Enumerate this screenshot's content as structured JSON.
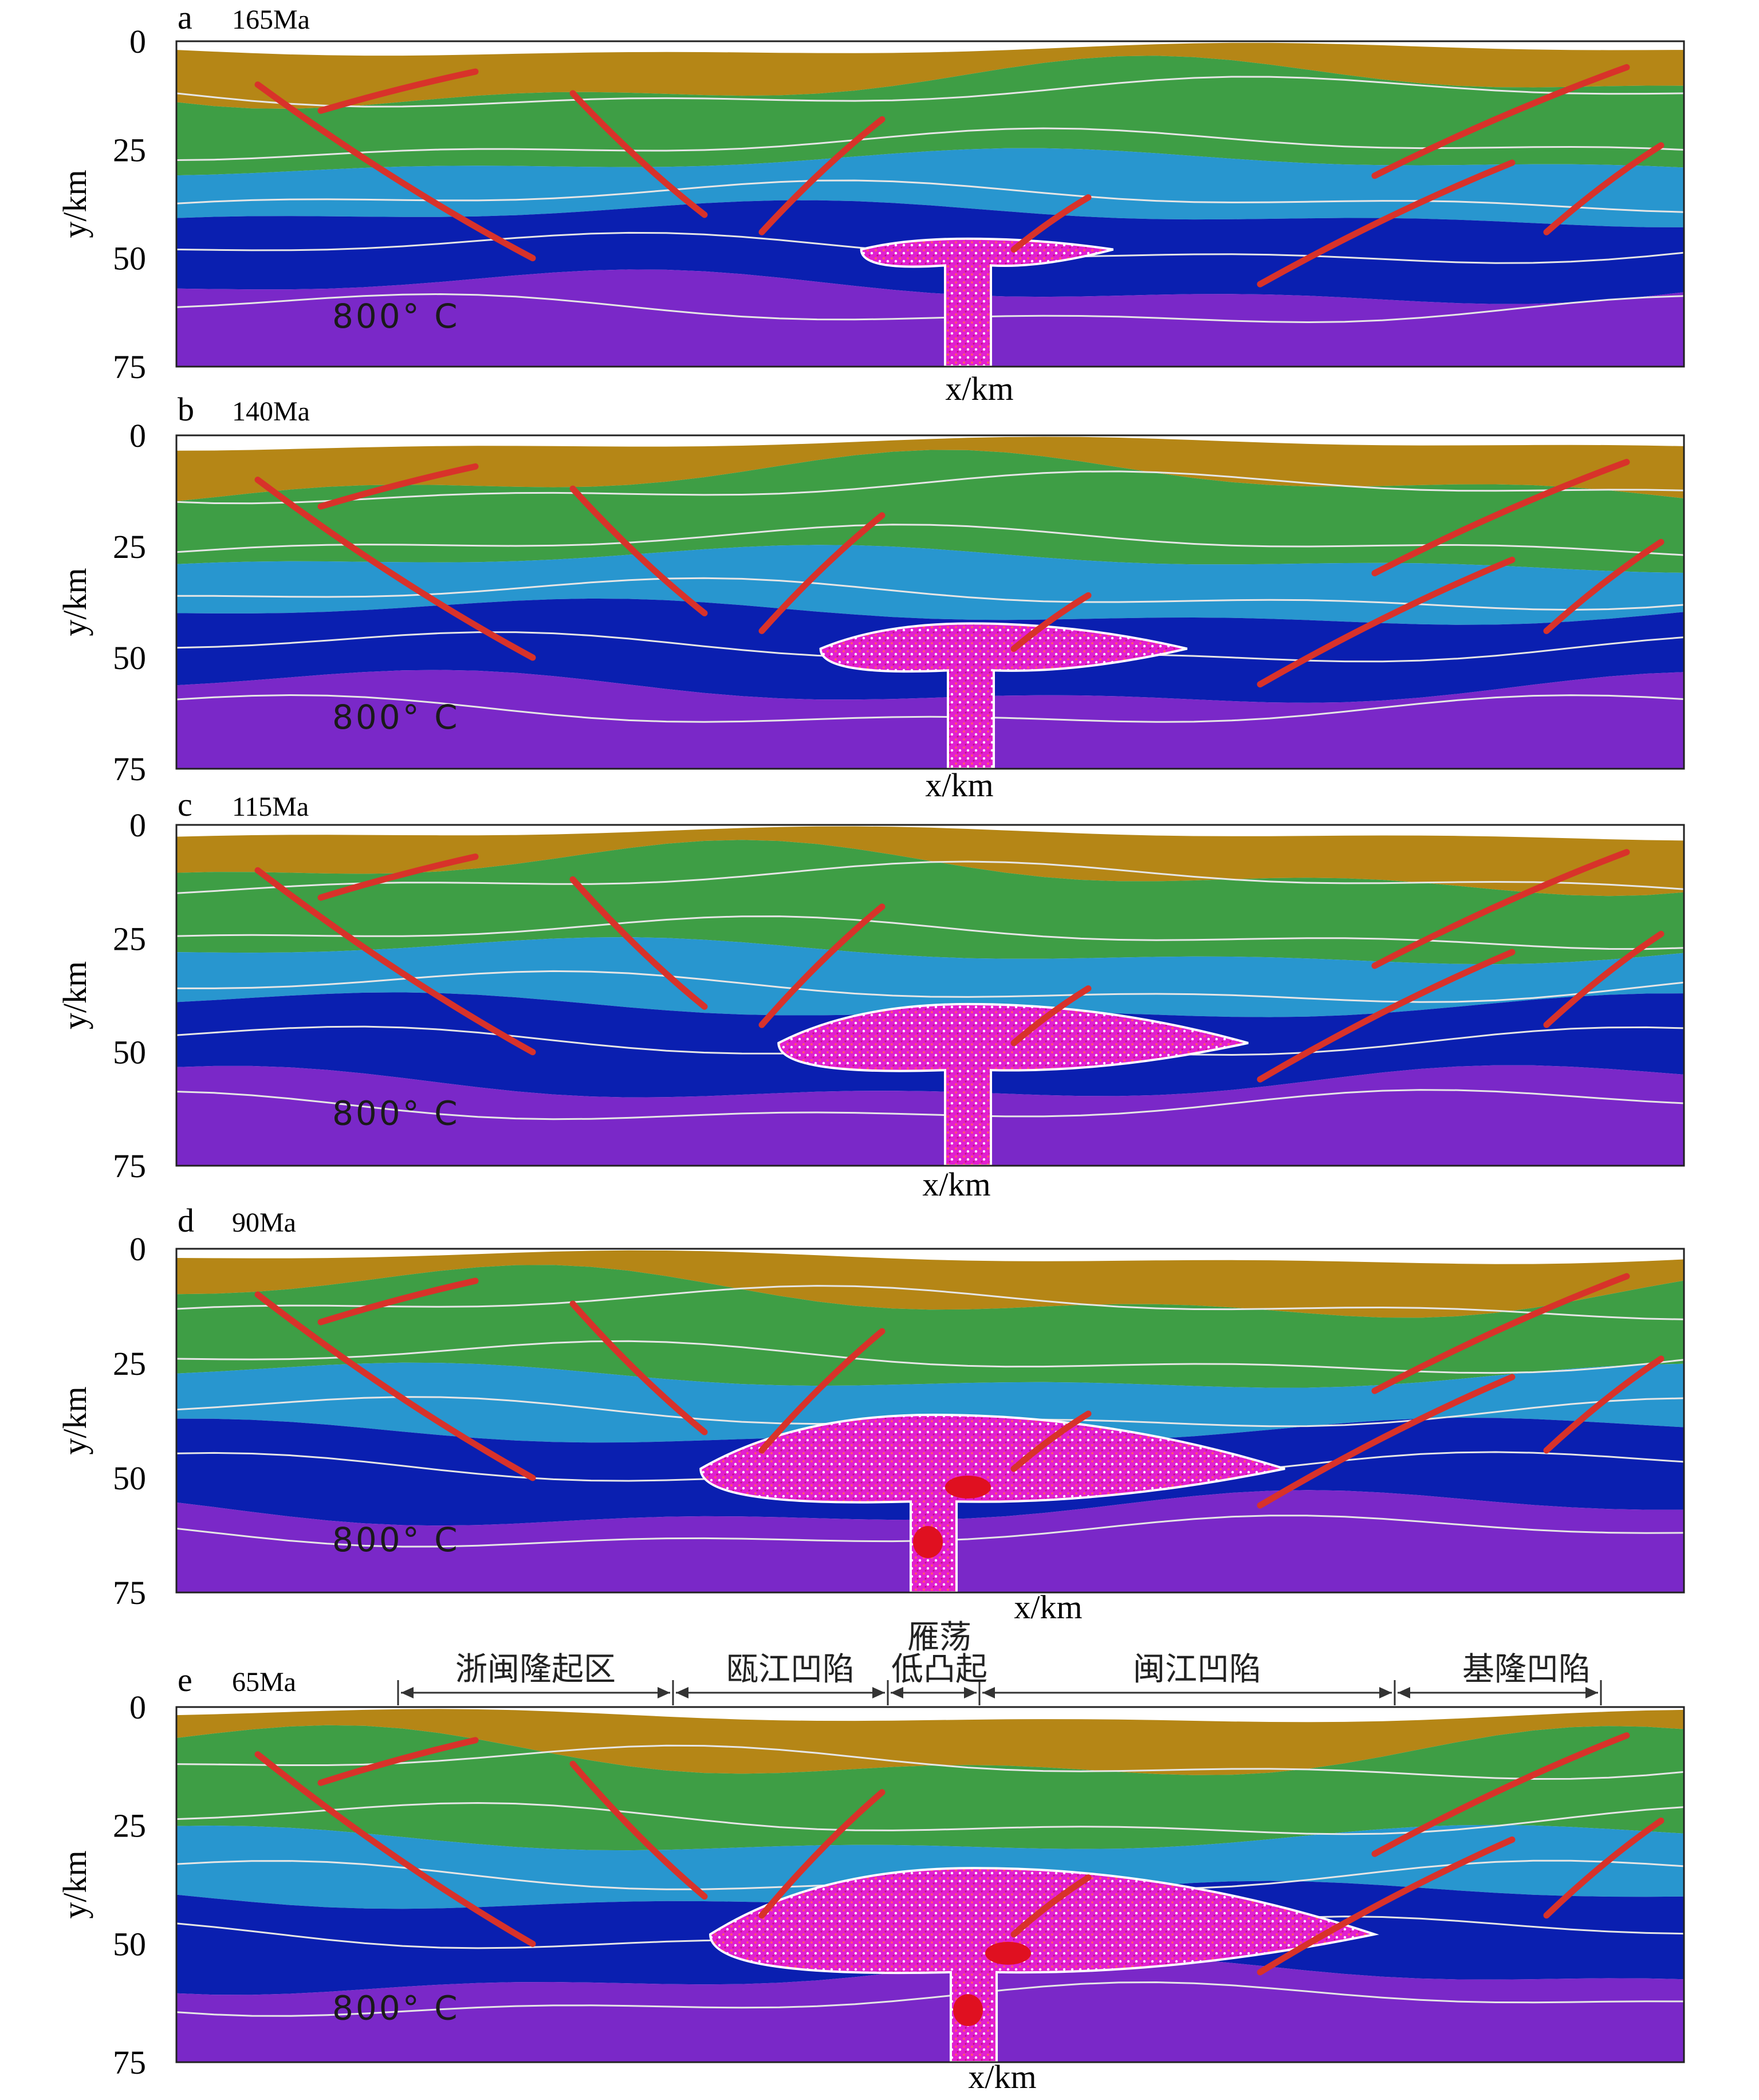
{
  "colors": {
    "sediment": "#b58616",
    "upper_crust": "#3e9e45",
    "middle_crust": "#2896cf",
    "lower_crust": "#0a1fb0",
    "mantle": "#7a28c8",
    "magma_outline": "#ffffff",
    "magma_fill": "#e21fd0",
    "magma_core": "#e01020",
    "fault": "#d8322a",
    "isotherm": "#e6e6e6"
  },
  "y_axis": {
    "label": "y/km",
    "ticks": [
      "0",
      "25",
      "50",
      "75"
    ]
  },
  "x_axis": {
    "label": "x/km"
  },
  "isotherm_label": "800° C",
  "panels": [
    {
      "letter": "a",
      "age": "165Ma"
    },
    {
      "letter": "b",
      "age": "140Ma"
    },
    {
      "letter": "c",
      "age": "115Ma"
    },
    {
      "letter": "d",
      "age": "90Ma"
    },
    {
      "letter": "e",
      "age": "65Ma"
    }
  ],
  "regions": [
    {
      "name": "浙闽隆起区"
    },
    {
      "name": "瓯江凹陷"
    },
    {
      "name_line1": "雁荡",
      "name_line2": "低凸起"
    },
    {
      "name": "闽江凹陷"
    },
    {
      "name": "基隆凹陷"
    }
  ]
}
